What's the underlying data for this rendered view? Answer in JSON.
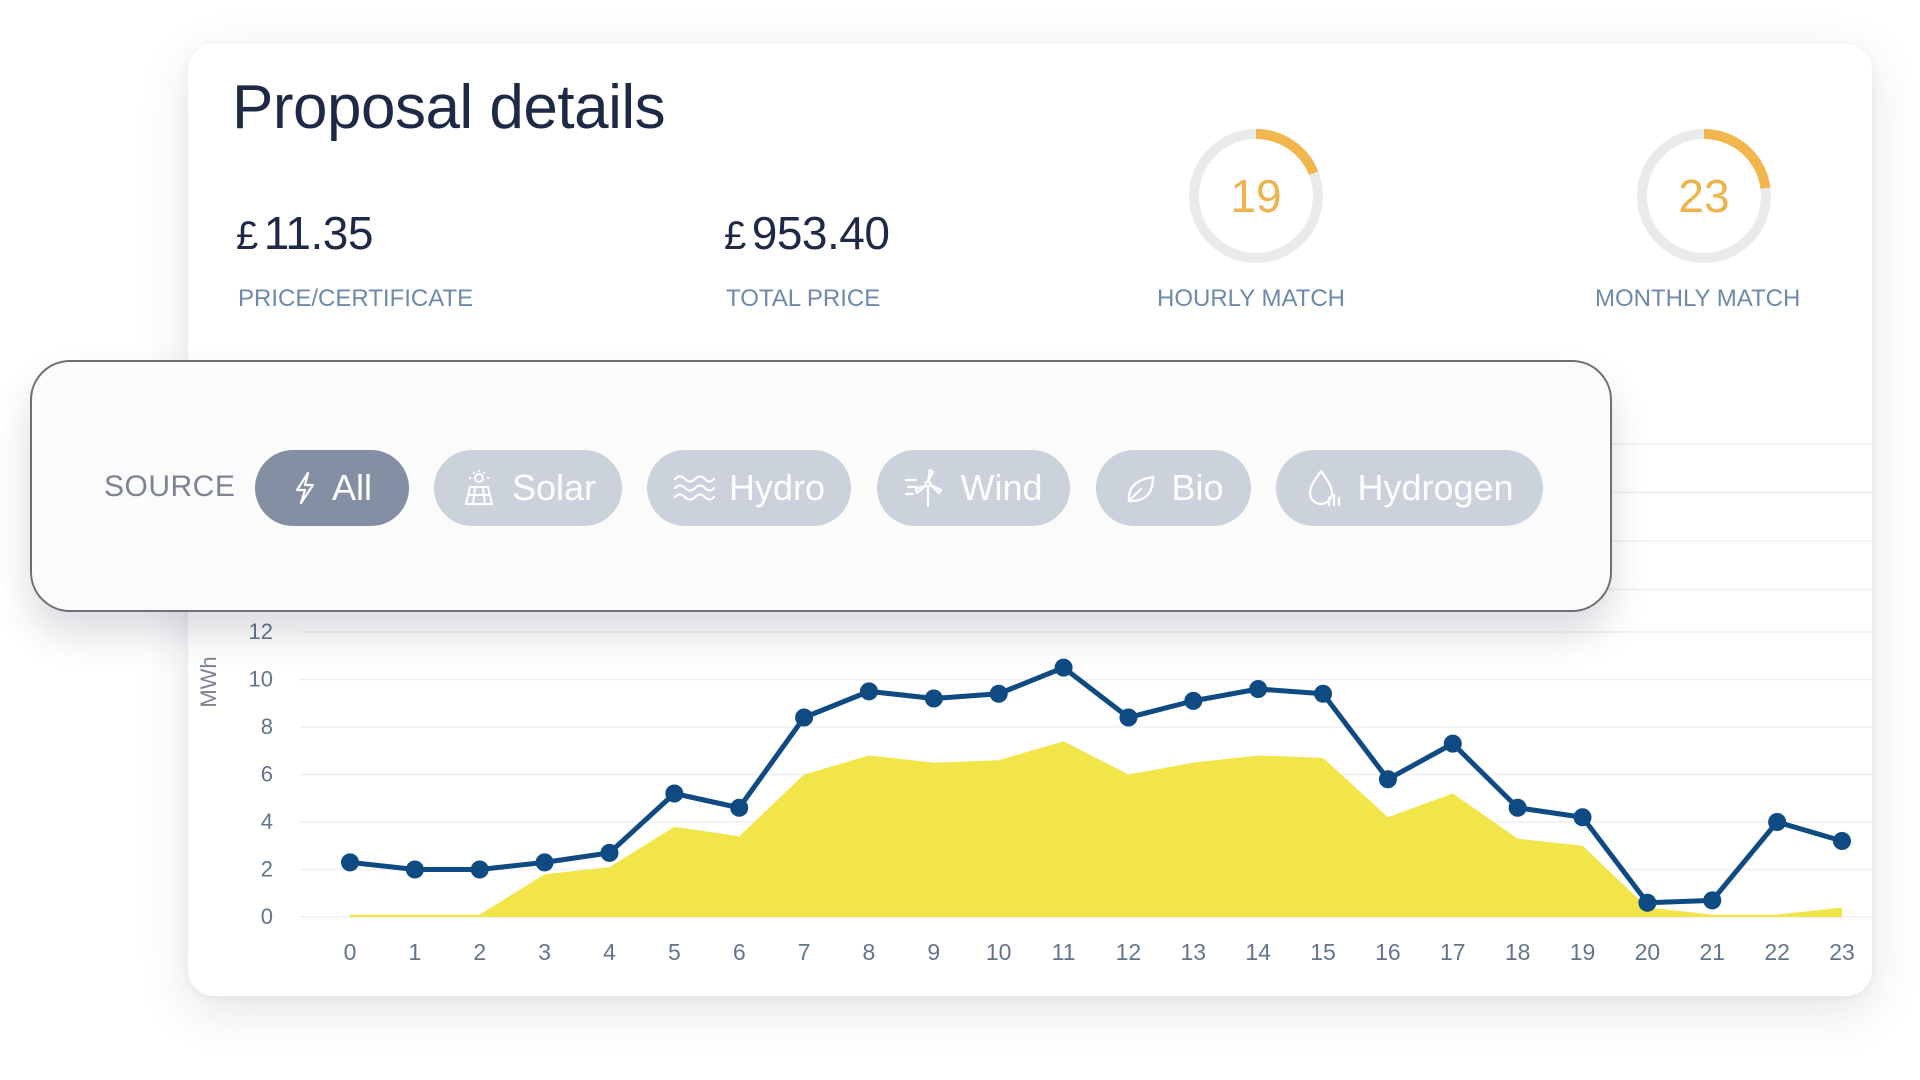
{
  "header": {
    "title": "Proposal details"
  },
  "stats": {
    "price_per_certificate": {
      "currency": "£",
      "value": "11.35",
      "label": "PRICE/CERTIFICATE"
    },
    "total_price": {
      "currency": "£",
      "value": "953.40",
      "label": "TOTAL PRICE"
    },
    "hourly_match": {
      "value": "19",
      "label": "HOURLY MATCH",
      "fraction": 0.19
    },
    "monthly_match": {
      "value": "23",
      "label": "MONTHLY MATCH",
      "fraction": 0.23
    }
  },
  "filter": {
    "label": "SOURCE",
    "options": [
      {
        "label": "All",
        "icon": "lightning-icon",
        "active": true
      },
      {
        "label": "Solar",
        "icon": "solar-panel-icon",
        "active": false
      },
      {
        "label": "Hydro",
        "icon": "waves-icon",
        "active": false
      },
      {
        "label": "Wind",
        "icon": "wind-turbine-icon",
        "active": false
      },
      {
        "label": "Bio",
        "icon": "leaf-icon",
        "active": false
      },
      {
        "label": "Hydrogen",
        "icon": "droplet-icon",
        "active": false
      }
    ]
  },
  "colors": {
    "line": "#0f4a83",
    "area": "#f2e549",
    "gauge_track": "#e9eaec",
    "gauge_arc": "#f2b64f",
    "chip_active": "#848fa3",
    "chip_inactive": "#ccd2dc"
  },
  "chart_data": {
    "type": "line",
    "ylabel": "MWh",
    "xlabel": "",
    "ylim": [
      0,
      12
    ],
    "y_ticks": [
      0,
      2,
      4,
      6,
      8,
      10,
      12
    ],
    "grid": true,
    "x": [
      0,
      1,
      2,
      3,
      4,
      5,
      6,
      7,
      8,
      9,
      10,
      11,
      12,
      13,
      14,
      15,
      16,
      17,
      18,
      19,
      20,
      21,
      22,
      23
    ],
    "series": [
      {
        "type": "line",
        "values": [
          2.3,
          2.0,
          2.0,
          2.3,
          2.7,
          5.2,
          4.6,
          8.4,
          9.5,
          9.2,
          9.4,
          10.5,
          8.4,
          9.1,
          9.6,
          9.4,
          5.8,
          7.3,
          4.6,
          4.2,
          0.6,
          0.7,
          4.0,
          3.2
        ]
      },
      {
        "type": "area",
        "values": [
          0.1,
          0.1,
          0.1,
          1.8,
          2.1,
          3.8,
          3.4,
          6.0,
          6.8,
          6.5,
          6.6,
          7.4,
          6.0,
          6.5,
          6.8,
          6.7,
          4.2,
          5.2,
          3.3,
          3.0,
          0.4,
          0.1,
          0.1,
          0.4
        ]
      }
    ]
  }
}
